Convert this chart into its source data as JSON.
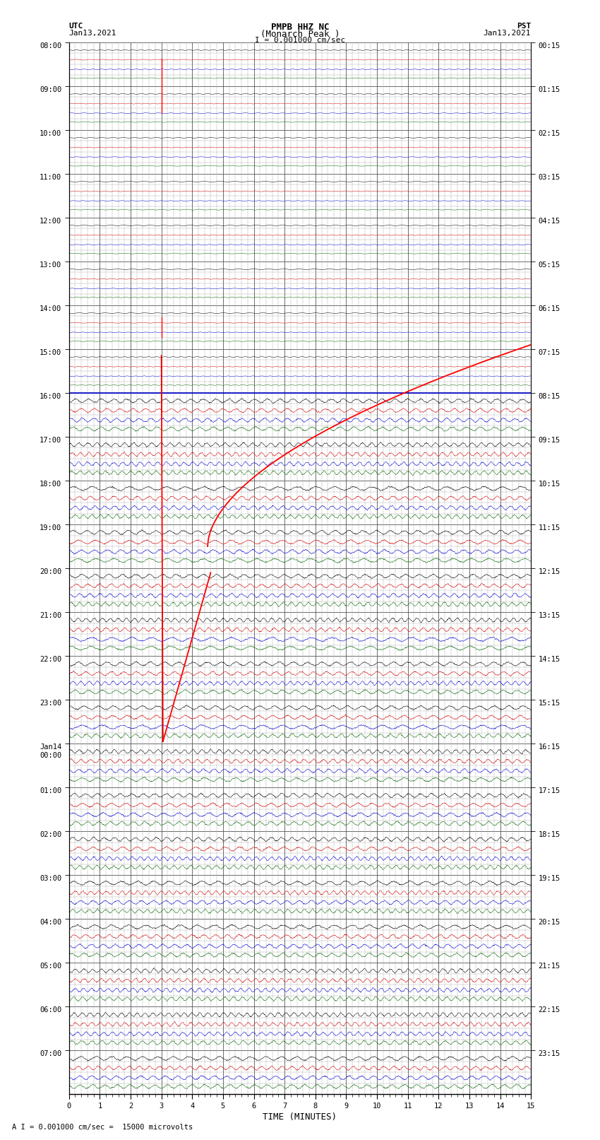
{
  "title_line1": "PMPB HHZ NC",
  "title_line2": "(Monarch Peak )",
  "title_line3": "I = 0.001000 cm/sec",
  "left_label_top": "UTC",
  "left_label_date": "Jan13,2021",
  "right_label_top": "PST",
  "right_label_date": "Jan13,2021",
  "bottom_label": "TIME (MINUTES)",
  "bottom_note": "A I = 0.001000 cm/sec =  15000 microvolts",
  "utc_times": [
    "08:00",
    "09:00",
    "10:00",
    "11:00",
    "12:00",
    "13:00",
    "14:00",
    "15:00",
    "16:00",
    "17:00",
    "18:00",
    "19:00",
    "20:00",
    "21:00",
    "22:00",
    "23:00",
    "Jan14\n00:00",
    "01:00",
    "02:00",
    "03:00",
    "04:00",
    "05:00",
    "06:00",
    "07:00"
  ],
  "pst_times": [
    "00:15",
    "01:15",
    "02:15",
    "03:15",
    "04:15",
    "05:15",
    "06:15",
    "07:15",
    "08:15",
    "09:15",
    "10:15",
    "11:15",
    "12:15",
    "13:15",
    "14:15",
    "15:15",
    "16:15",
    "17:15",
    "18:15",
    "19:15",
    "20:15",
    "21:15",
    "22:15",
    "23:15"
  ],
  "n_rows": 24,
  "n_cols": 15,
  "bg_color": "#ffffff",
  "trace_black": "#000000",
  "trace_red": "#cc0000",
  "trace_blue": "#0000cc",
  "trace_green": "#006600",
  "event_red": "#ff0000",
  "grid_major_color": "#555555",
  "grid_minor_color": "#aaaaaa"
}
